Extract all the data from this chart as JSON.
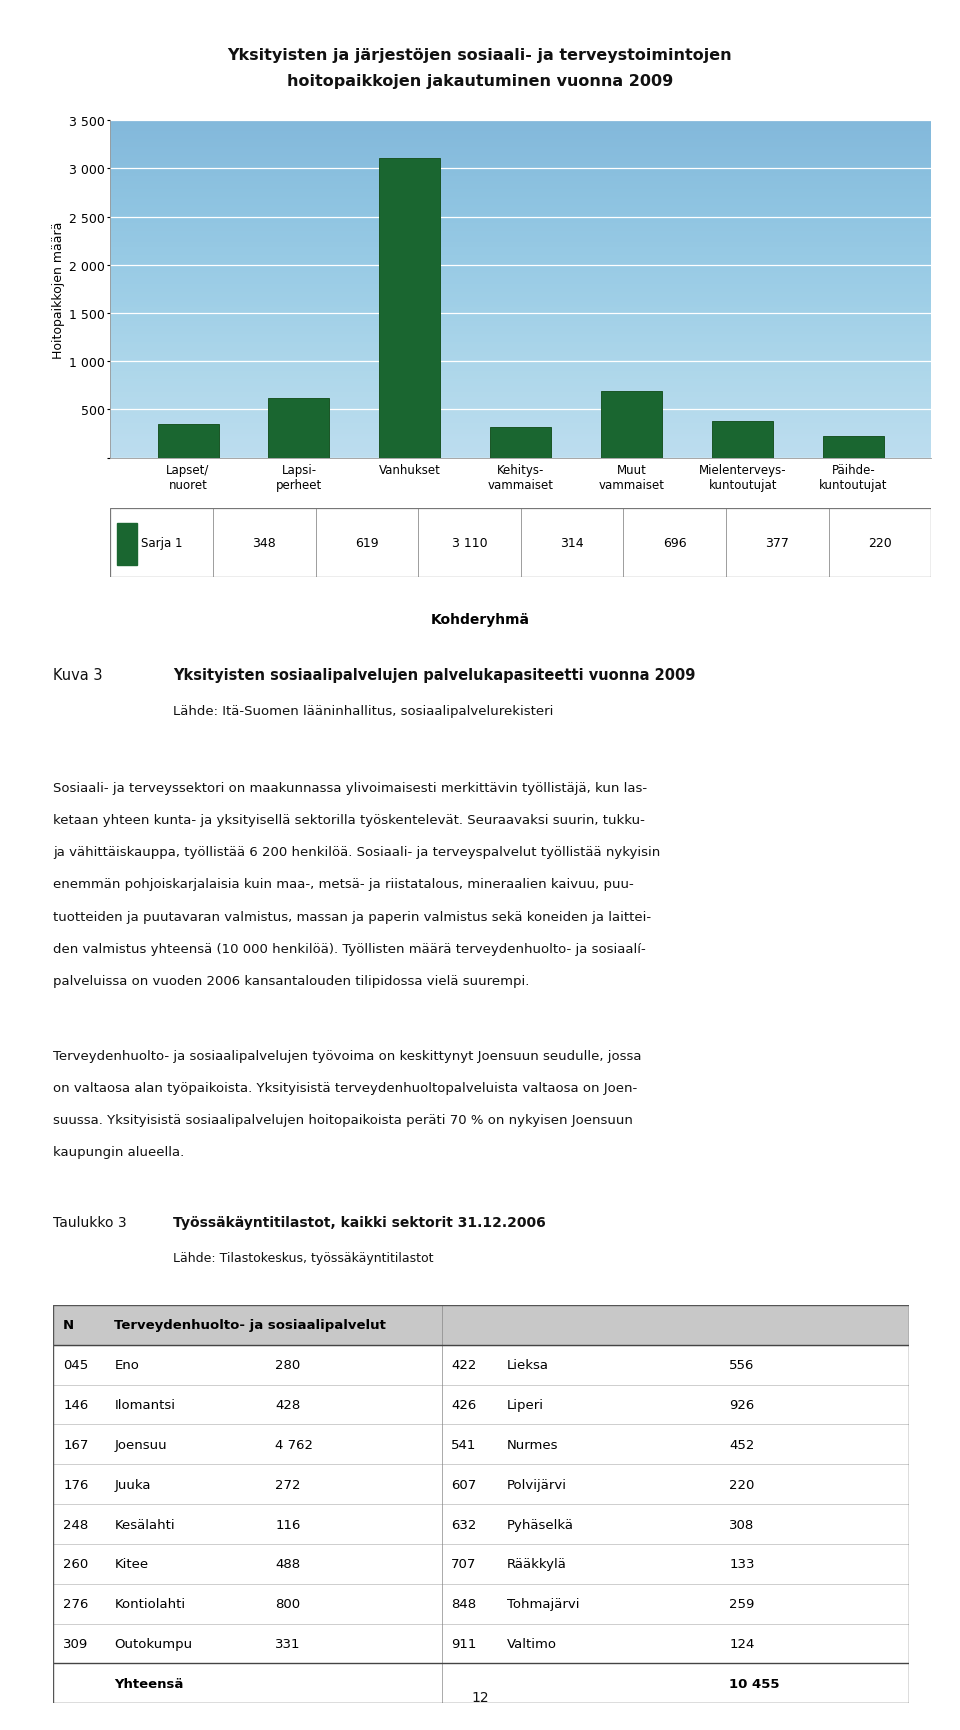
{
  "title_line1": "Yksityisten ja järjestöjen sosiaali- ja terveystoimintojen",
  "title_line2": "hoitopaikkojen jakautuminen vuonna 2009",
  "categories": [
    "Lapset/\nnuoret",
    "Lapsi-\nperheet",
    "Vanhukset",
    "Kehitys-\nvammaiset",
    "Muut\nvammaiset",
    "Mielenterveys-\nkuntoutujat",
    "Päihde-\nkuntoutujat"
  ],
  "values": [
    348,
    619,
    3110,
    314,
    696,
    377,
    220
  ],
  "bar_color": "#1a6630",
  "bar_edge_color": "#1a5525",
  "ylabel": "Hoitopaikkojen määrä",
  "xlabel": "Kohderyhmä",
  "legend_label": "Sarja 1",
  "ylim_max": 3500,
  "yticks": [
    0,
    500,
    1000,
    1500,
    2000,
    2500,
    3000,
    3500
  ],
  "ytick_labels": [
    "",
    "500",
    "1 000",
    "1 500",
    "2 000",
    "2 500",
    "3 000",
    "3 500"
  ],
  "chart_bg_top": "#c5e5f0",
  "chart_bg_bottom": "#dff0f8",
  "figure_bg": "#ffffff",
  "caption_title_prefix": "Kuva 3",
  "caption_title_bold": "Yksityisten sosiaalipalvelujen palvelukapasiteetti vuonna 2009",
  "caption_subtitle": "Lähde: Itä-Suomen lääninhallitus, sosiaalipalvelurekisteri",
  "para1_lines": [
    "Sosiaali- ja terveyssektori on maakunnassa ylivoimaisesti merkittävin työllistäjä, kun las-",
    "ketaan yhteen kunta- ja yksityisellä sektorilla työskentelevät. Seuraavaksi suurin, tukku-",
    "ja vähittäiskauppa, työllistää 6 200 henkilöä. Sosiaali- ja terveyspalvelut työllistää nykyisin",
    "enemmän pohjoiskarjalaisia kuin maa-, metsä- ja riistatalous, mineraalien kaivuu, puu-",
    "tuotteiden ja puutavaran valmistus, massan ja paperin valmistus sekä koneiden ja laittei-",
    "den valmistus yhteensä (10 000 henkilöä). Työllisten määrä terveydenhuolto- ja sosiaalí-",
    "palveluissa on vuoden 2006 kansantalouden tilipidossa vielä suurempi."
  ],
  "para2_lines": [
    "Terveydenhuolto- ja sosiaalipalvelujen työvoima on keskittynyt Joensuun seudulle, jossa",
    "on valtaosa alan työpaikoista. Yksityisistä terveydenhuoltopalveluista valtaosa on Joen-",
    "suussa. Yksityisistä sosiaalipalvelujen hoitopaikoista peräti 70 % on nykyisen Joensuun",
    "kaupungin alueella."
  ],
  "table_title_prefix": "Taulukko 3",
  "table_title_bold": "Työssäkäyntitilastot, kaikki sektorit 31.12.2006",
  "table_subtitle": "Lähde: Tilastokeskus, työssäkäyntitilastot",
  "table_rows": [
    [
      "045",
      "Eno",
      "280",
      "422",
      "Lieksa",
      "556"
    ],
    [
      "146",
      "Ilomantsi",
      "428",
      "426",
      "Liperi",
      "926"
    ],
    [
      "167",
      "Joensuu",
      "4 762",
      "541",
      "Nurmes",
      "452"
    ],
    [
      "176",
      "Juuka",
      "272",
      "607",
      "Polvijärvi",
      "220"
    ],
    [
      "248",
      "Kesälahti",
      "116",
      "632",
      "Pyhäselkä",
      "308"
    ],
    [
      "260",
      "Kitee",
      "488",
      "707",
      "Rääkkylä",
      "133"
    ],
    [
      "276",
      "Kontiolahti",
      "800",
      "848",
      "Tohmajärvi",
      "259"
    ],
    [
      "309",
      "Outokumpu",
      "331",
      "911",
      "Valtimo",
      "124"
    ]
  ],
  "table_total_label": "Yhteensä",
  "table_total_value": "10 455",
  "page_number": "12"
}
